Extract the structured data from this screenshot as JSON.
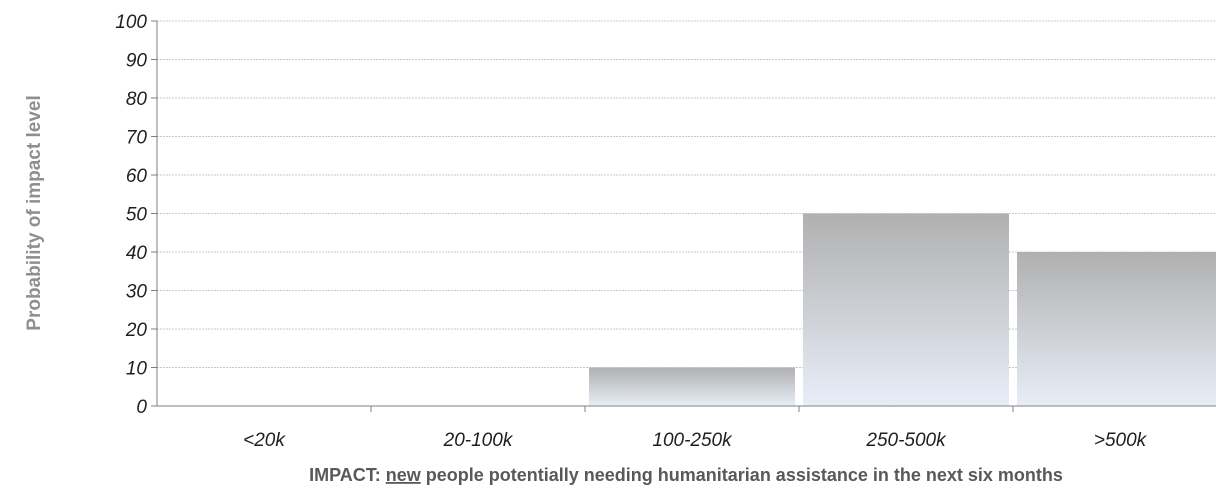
{
  "chart_data": {
    "type": "bar",
    "categories": [
      "<20k",
      "20-100k",
      "100-250k",
      "250-500k",
      ">500k"
    ],
    "values": [
      0,
      0,
      10,
      50,
      40
    ],
    "xlabel": {
      "before": "IMPACT: ",
      "emphasis": "new",
      "after": " people potentially needing humanitarian assistance in the next six months"
    },
    "ylabel": "Probability of impact level",
    "ylim": [
      0,
      100
    ],
    "yticks": [
      "0",
      "10",
      "20",
      "30",
      "40",
      "50",
      "60",
      "70",
      "80",
      "90",
      "100"
    ],
    "grid": true,
    "legend": "none",
    "bar_gradient": {
      "top": "#b0b0b0",
      "bottom": "#e8eef8"
    },
    "grid_color": "#c8c8c8"
  }
}
